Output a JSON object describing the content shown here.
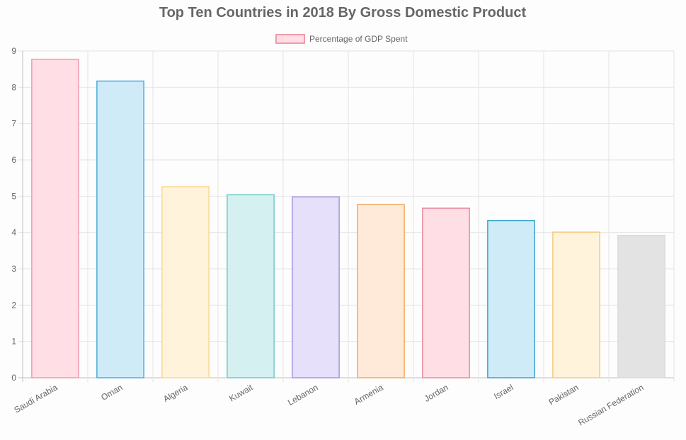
{
  "chart_data": {
    "type": "bar",
    "title": "Top Ten Countries in 2018 By Gross Domestic Product",
    "xlabel": "",
    "ylabel": "",
    "ylim": [
      0,
      9
    ],
    "yticks": [
      "0",
      "1",
      "2",
      "3",
      "4",
      "5",
      "6",
      "7",
      "8",
      "9"
    ],
    "grid": true,
    "legend_position": "top-center",
    "categories": [
      "Saudi Arabia",
      "Oman",
      "Algeria",
      "Kuwait",
      "Lebanon",
      "Armenia",
      "Jordan",
      "Israel",
      "Pakistan",
      "Russian Federation"
    ],
    "series": [
      {
        "name": "Percentage of GDP Spent",
        "values": [
          8.77,
          8.17,
          5.26,
          5.04,
          4.98,
          4.77,
          4.67,
          4.33,
          4.01,
          3.92
        ],
        "fill_colors": [
          "#ffdfe5",
          "#cfebf8",
          "#fff3dc",
          "#d5f0f0",
          "#e6e0fb",
          "#ffead9",
          "#ffdfe5",
          "#cfebf8",
          "#fff3dc",
          "#e3e3e3"
        ],
        "border_colors": [
          "#f29aab",
          "#48aedd",
          "#fbd68f",
          "#71c9c9",
          "#a694db",
          "#f0aa60",
          "#e88a9c",
          "#3aa4cf",
          "#f2cc7e",
          "#dadada"
        ]
      }
    ],
    "legend_swatch_fill": "#ffdfe5",
    "legend_swatch_border": "#f29aab"
  }
}
